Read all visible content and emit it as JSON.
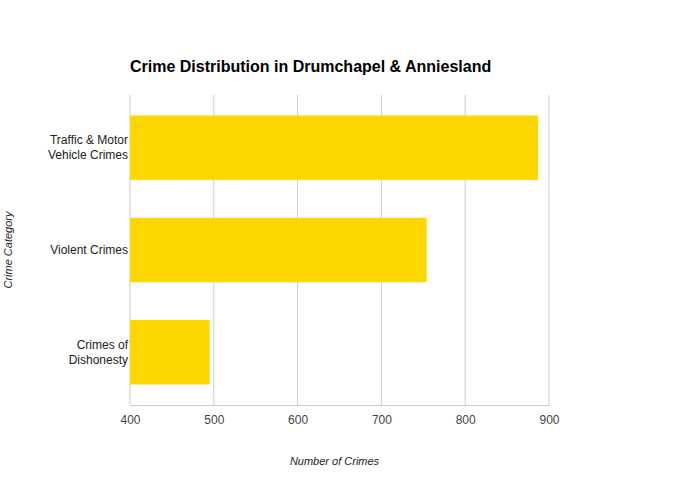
{
  "chart_data": {
    "type": "bar",
    "orientation": "horizontal",
    "title": "Crime Distribution in Drumchapel & Anniesland",
    "x_label": "Number of Crimes",
    "y_label": "Crime Category",
    "categories": [
      "Traffic & Motor Vehicle Crimes",
      "Violent Crimes",
      "Crimes of Dishonesty"
    ],
    "values": [
      887,
      754,
      495
    ],
    "color": "#FFD700",
    "xlim": [
      400,
      900
    ],
    "xticks": [
      400,
      500,
      600,
      700,
      800,
      900
    ],
    "grid": true
  }
}
